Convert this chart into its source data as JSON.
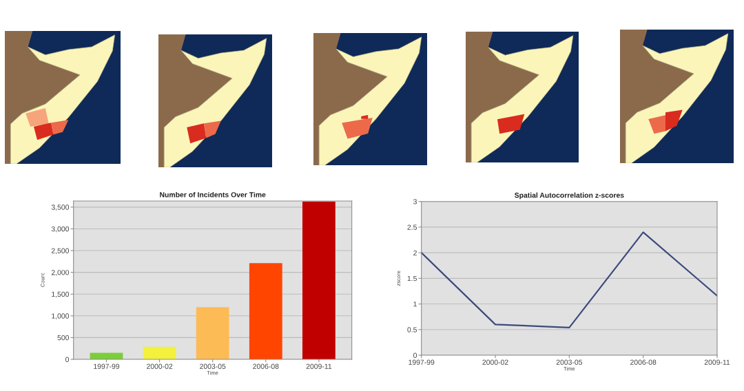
{
  "chart_data": [
    {
      "type": "bar",
      "title": "Number of Incidents Over Time",
      "xlabel": "Time",
      "ylabel": "Count",
      "categories": [
        "1997-99",
        "2000-02",
        "2003-05",
        "2006-08",
        "2009-11"
      ],
      "values": [
        150,
        290,
        1200,
        2210,
        3630
      ],
      "colors": [
        "#7ccd3c",
        "#f4f03e",
        "#fdbb55",
        "#ff4500",
        "#c00000"
      ],
      "ylim": [
        0,
        3640
      ],
      "yticks": [
        0,
        500,
        {
          "value": 1000,
          "label": "1,000"
        },
        {
          "value": 1500,
          "label": "1,500"
        },
        {
          "value": 2000,
          "label": "2,000"
        },
        {
          "value": 2500,
          "label": "2,500"
        },
        {
          "value": 3000,
          "label": "3,000"
        },
        {
          "value": 3500,
          "label": "3,500"
        }
      ],
      "grid": "y"
    },
    {
      "type": "line",
      "title": "Spatial Autocorrelation z-scores",
      "xlabel": "Time",
      "ylabel": "zscore",
      "categories": [
        "1997-99",
        "2000-02",
        "2003-05",
        "2006-08",
        "2009-11"
      ],
      "series": [
        {
          "color": "#3c4a7c",
          "values": [
            2,
            0.6,
            0.54,
            2.4,
            1.16
          ]
        }
      ],
      "ylim": [
        0,
        3
      ],
      "yticks": [
        0,
        0.5,
        1,
        1.5,
        2,
        2.5,
        3
      ],
      "grid": "y"
    }
  ]
}
